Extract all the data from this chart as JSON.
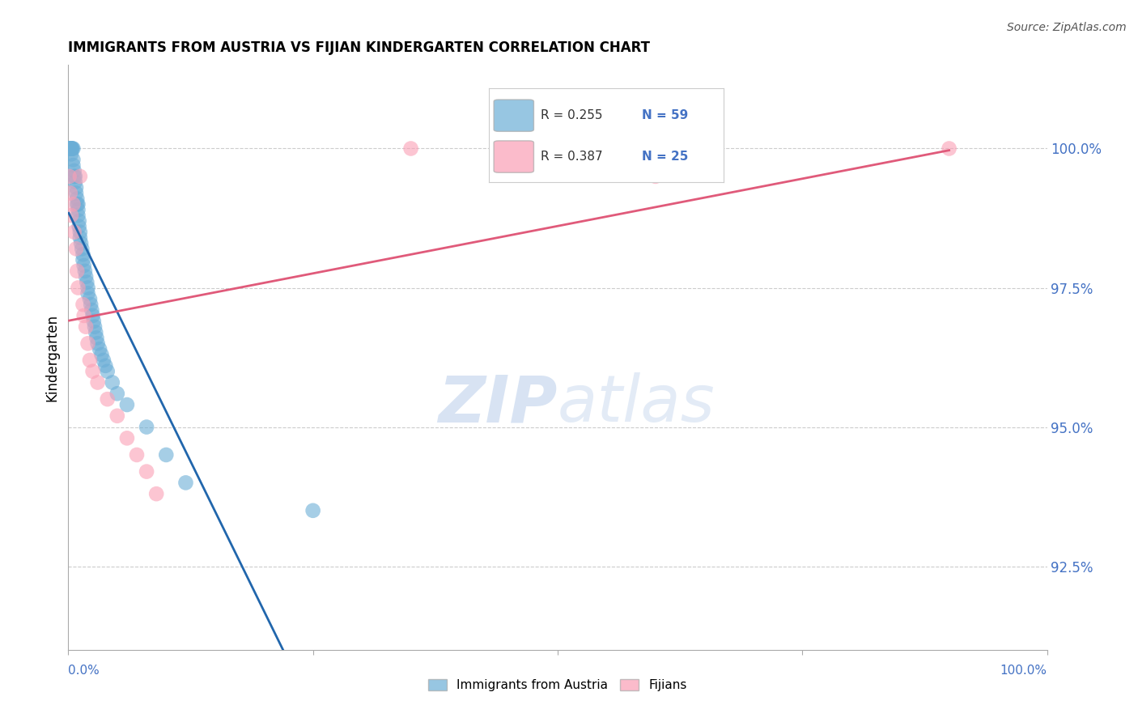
{
  "title": "IMMIGRANTS FROM AUSTRIA VS FIJIAN KINDERGARTEN CORRELATION CHART",
  "source": "Source: ZipAtlas.com",
  "ylabel": "Kindergarten",
  "yticks": [
    92.5,
    95.0,
    97.5,
    100.0
  ],
  "ytick_labels": [
    "92.5%",
    "95.0%",
    "97.5%",
    "100.0%"
  ],
  "xlim": [
    0.0,
    1.0
  ],
  "ylim": [
    91.0,
    101.5
  ],
  "blue_R": 0.255,
  "blue_N": 59,
  "pink_R": 0.387,
  "pink_N": 25,
  "blue_color": "#6baed6",
  "pink_color": "#fa9fb5",
  "blue_line_color": "#2166ac",
  "pink_line_color": "#e05a7a",
  "watermark_zip": "ZIP",
  "watermark_atlas": "atlas",
  "legend_label_blue": "Immigrants from Austria",
  "legend_label_pink": "Fijians",
  "blue_x": [
    0.0005,
    0.001,
    0.0015,
    0.002,
    0.002,
    0.003,
    0.003,
    0.003,
    0.004,
    0.004,
    0.005,
    0.005,
    0.005,
    0.006,
    0.006,
    0.007,
    0.007,
    0.008,
    0.008,
    0.009,
    0.009,
    0.01,
    0.01,
    0.01,
    0.011,
    0.011,
    0.012,
    0.012,
    0.013,
    0.014,
    0.015,
    0.015,
    0.016,
    0.017,
    0.018,
    0.019,
    0.02,
    0.02,
    0.022,
    0.023,
    0.024,
    0.025,
    0.026,
    0.027,
    0.028,
    0.029,
    0.03,
    0.032,
    0.034,
    0.036,
    0.038,
    0.04,
    0.045,
    0.05,
    0.06,
    0.08,
    0.1,
    0.12,
    0.25
  ],
  "blue_y": [
    100.0,
    100.0,
    100.0,
    100.0,
    100.0,
    100.0,
    100.0,
    99.9,
    100.0,
    100.0,
    100.0,
    99.8,
    99.7,
    99.6,
    99.5,
    99.4,
    99.5,
    99.3,
    99.2,
    99.1,
    99.0,
    98.9,
    98.8,
    99.0,
    98.7,
    98.6,
    98.5,
    98.4,
    98.3,
    98.2,
    98.1,
    98.0,
    97.9,
    97.8,
    97.7,
    97.6,
    97.5,
    97.4,
    97.3,
    97.2,
    97.1,
    97.0,
    96.9,
    96.8,
    96.7,
    96.6,
    96.5,
    96.4,
    96.3,
    96.2,
    96.1,
    96.0,
    95.8,
    95.6,
    95.4,
    95.0,
    94.5,
    94.0,
    93.5
  ],
  "pink_x": [
    0.001,
    0.002,
    0.003,
    0.005,
    0.006,
    0.008,
    0.009,
    0.01,
    0.012,
    0.015,
    0.016,
    0.018,
    0.02,
    0.022,
    0.025,
    0.03,
    0.04,
    0.05,
    0.06,
    0.07,
    0.08,
    0.09,
    0.35,
    0.6,
    0.9
  ],
  "pink_y": [
    99.5,
    99.2,
    98.8,
    99.0,
    98.5,
    98.2,
    97.8,
    97.5,
    99.5,
    97.2,
    97.0,
    96.8,
    96.5,
    96.2,
    96.0,
    95.8,
    95.5,
    95.2,
    94.8,
    94.5,
    94.2,
    93.8,
    100.0,
    99.5,
    100.0
  ]
}
